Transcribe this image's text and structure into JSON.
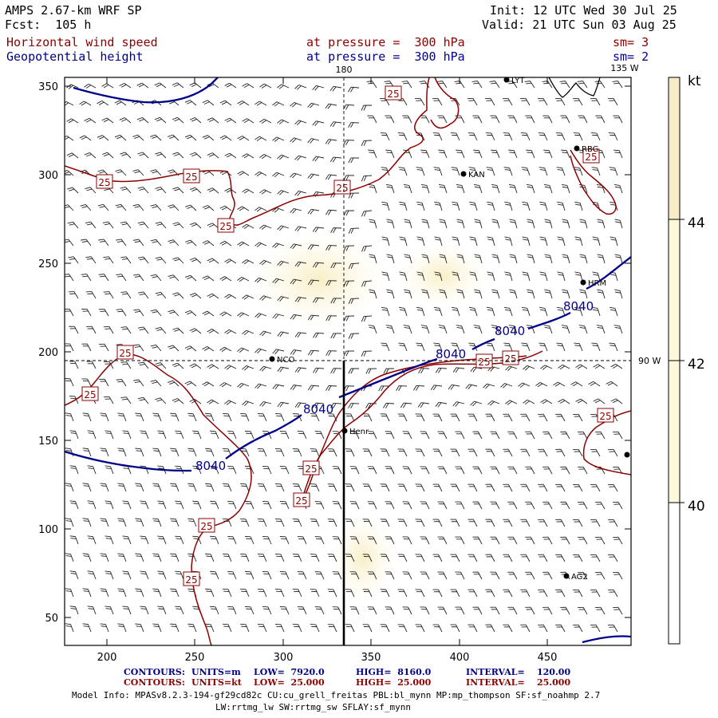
{
  "header": {
    "model": "AMPS 2.67-km WRF SP",
    "forecast": "Fcst:  105 h",
    "init": "Init: 12 UTC Wed 30 Jul 25",
    "valid": "Valid: 21 UTC Sun 03 Aug 25",
    "field1_name": "Horizontal wind speed",
    "field1_level": "at pressure =  300 hPa",
    "field1_smooth": "sm= 3",
    "field2_name": "Geopotential height",
    "field2_level": "at pressure =  300 hPa",
    "field2_smooth": "sm= 2"
  },
  "map": {
    "x_ticks": [
      "200",
      "250",
      "300",
      "350",
      "400",
      "450"
    ],
    "y_ticks": [
      "50",
      "100",
      "150",
      "200",
      "250",
      "300",
      "350"
    ],
    "meridian_label_top": "180",
    "meridian_label_right": "135 W",
    "parallel_label": "90 W",
    "stations": [
      {
        "name": "LYT"
      },
      {
        "name": "RBG"
      },
      {
        "name": "KAN"
      },
      {
        "name": "HRM"
      },
      {
        "name": "NCO"
      },
      {
        "name": "Henr"
      },
      {
        "name": "AG2"
      }
    ],
    "height_contour_labels": [
      "8040",
      "8040",
      "8040",
      "8040",
      "8040"
    ],
    "speed_contour_labels": [
      "25",
      "25",
      "25",
      "25",
      "25",
      "25",
      "25",
      "25",
      "25",
      "25",
      "25",
      "25",
      "25",
      "25",
      "25"
    ]
  },
  "colorbar": {
    "unit": "kt",
    "labels": [
      "44",
      "42",
      "40"
    ],
    "colors": {
      "low": "#ffffff",
      "mid": "#fdf8dc",
      "high": "#f8ecc8"
    }
  },
  "footer": {
    "line1": {
      "contours": "CONTOURS:",
      "units": "UNITS=m",
      "low": "LOW=  7920.0",
      "high": "HIGH=  8160.0",
      "interval": "INTERVAL=    120.00"
    },
    "line2": {
      "contours": "CONTOURS:",
      "units": "UNITS=kt",
      "low": "LOW=  25.000",
      "high": "HIGH=  25.000",
      "interval": "INTERVAL=    25.000"
    },
    "model_info1": "Model Info: MPASv8.2.3-194-gf29cd82c CU:cu_grell_freitas PBL:bl_mynn MP:mp_thompson SF:sf_noahmp 2.7",
    "model_info2": "LW:rrtmg_lw SW:rrtmg_sw SFLAY:sf_mynn"
  },
  "colors": {
    "height_contour": "#00008b",
    "speed_contour": "#8b0000",
    "coast": "#000000"
  }
}
